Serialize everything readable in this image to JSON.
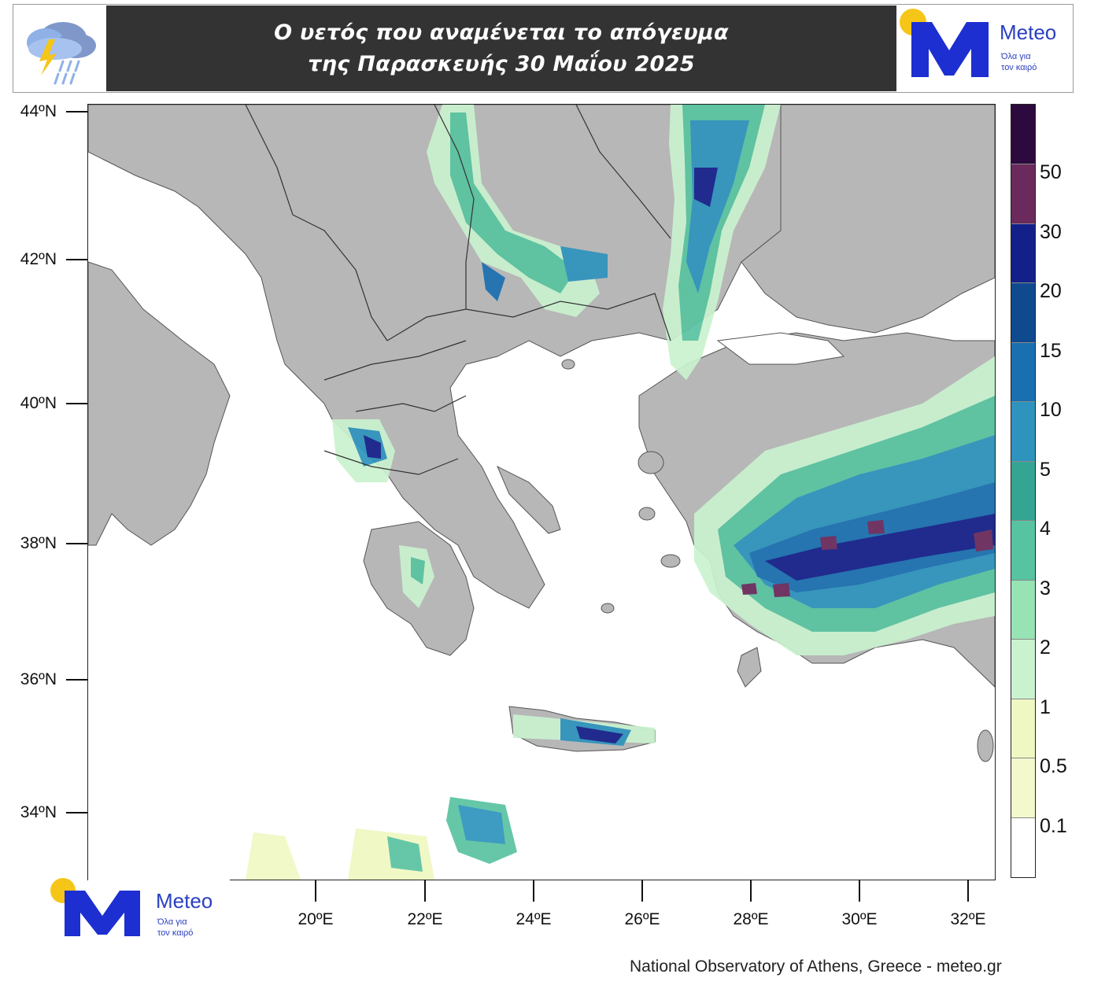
{
  "header": {
    "title_line1": "Ο υετός που αναμένεται το απόγευμα",
    "title_line2": "της Παρασκευής 30 Μαΐου 2025"
  },
  "logo": {
    "wordmark": "Meteo",
    "tagline_line1": "Όλα για",
    "tagline_line2": "τον καιρό",
    "color": "#2a3fc0",
    "sun_color": "#f5c518"
  },
  "map": {
    "latitude_labels": [
      "44ºN",
      "42ºN",
      "40ºN",
      "38ºN",
      "36ºN",
      "34ºN"
    ],
    "longitude_labels": [
      "20ºE",
      "22ºE",
      "24ºE",
      "26ºE",
      "28ºE",
      "30ºE",
      "32ºE"
    ],
    "land_color": "#b7b7b7",
    "sea_color": "#ffffff"
  },
  "colorbar": {
    "labels": [
      "50",
      "30",
      "20",
      "15",
      "10",
      "5",
      "4",
      "3",
      "2",
      "1",
      "0.5",
      "0.1"
    ],
    "colors": [
      "#2d0a3d",
      "#6b2a5c",
      "#14208a",
      "#0f4a8e",
      "#1a6fb0",
      "#2e93bd",
      "#34a593",
      "#58c3a0",
      "#97e3b4",
      "#caf2cf",
      "#eff8c2",
      "#f3f9cc",
      "#ffffff"
    ]
  },
  "credit": "National Observatory of Athens, Greece - meteo.gr"
}
